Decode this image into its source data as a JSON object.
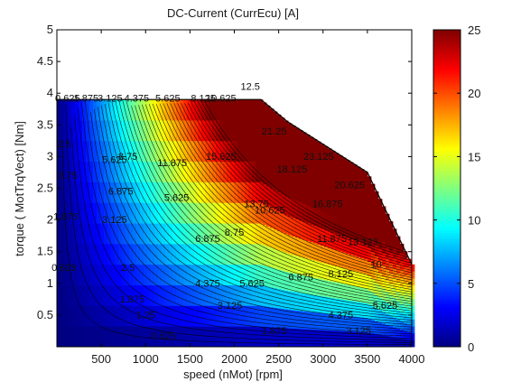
{
  "chart_data": {
    "type": "contour",
    "title": "DC-Current (CurrEcu) [A]",
    "xlabel": "speed (nMot) [rpm]",
    "ylabel": "torque ( MotTrqVect) [Nm]",
    "xlim": [
      0,
      4000
    ],
    "ylim": [
      0,
      5
    ],
    "x_ticks": [
      500,
      1000,
      1500,
      2000,
      2500,
      3000,
      3500,
      4000
    ],
    "y_ticks": [
      0.5,
      1,
      1.5,
      2,
      2.5,
      3,
      3.5,
      4,
      4.5,
      5
    ],
    "grid": false,
    "colormap": "jet",
    "colorbar": {
      "min": 0,
      "max": 25,
      "ticks": [
        0,
        5,
        10,
        15,
        20,
        25
      ]
    },
    "contour_step": 0.625,
    "operating_boundary": {
      "speed": [
        0,
        2300,
        2600,
        3500,
        4000
      ],
      "torque": [
        3.9,
        3.9,
        3.55,
        2.75,
        1.3
      ]
    },
    "contour_labels": [
      {
        "text": "0.625",
        "speed": 120,
        "torque": 3.87
      },
      {
        "text": "1.875",
        "speed": 330,
        "torque": 3.87
      },
      {
        "text": "3.125",
        "speed": 600,
        "torque": 3.87
      },
      {
        "text": "4.375",
        "speed": 900,
        "torque": 3.87
      },
      {
        "text": "5.625",
        "speed": 1250,
        "torque": 3.87
      },
      {
        "text": "8.125",
        "speed": 1650,
        "torque": 3.87
      },
      {
        "text": "10.625",
        "speed": 1850,
        "torque": 3.87
      },
      {
        "text": "12.5",
        "speed": 2180,
        "torque": 4.05
      },
      {
        "text": "2.5",
        "speed": 80,
        "torque": 3.15
      },
      {
        "text": "5.625",
        "speed": 650,
        "torque": 2.9
      },
      {
        "text": "6.875",
        "speed": 720,
        "torque": 2.4
      },
      {
        "text": "8.75",
        "speed": 800,
        "torque": 2.95
      },
      {
        "text": "11.875",
        "speed": 1300,
        "torque": 2.85
      },
      {
        "text": "15.625",
        "speed": 1850,
        "torque": 2.95
      },
      {
        "text": "18.125",
        "speed": 2650,
        "torque": 2.75
      },
      {
        "text": "21.25",
        "speed": 2450,
        "torque": 3.35
      },
      {
        "text": "23.125",
        "speed": 2950,
        "torque": 2.95
      },
      {
        "text": "3.75",
        "speed": 120,
        "torque": 2.65
      },
      {
        "text": "1.875",
        "speed": 100,
        "torque": 2.0
      },
      {
        "text": "5.625",
        "speed": 1350,
        "torque": 2.3
      },
      {
        "text": "10.625",
        "speed": 2400,
        "torque": 2.1
      },
      {
        "text": "13.75",
        "speed": 2250,
        "torque": 2.2
      },
      {
        "text": "16.875",
        "speed": 3050,
        "torque": 2.2
      },
      {
        "text": "20.625",
        "speed": 3300,
        "torque": 2.5
      },
      {
        "text": "3.125",
        "speed": 650,
        "torque": 1.95
      },
      {
        "text": "6.875",
        "speed": 1700,
        "torque": 1.65
      },
      {
        "text": "8.75",
        "speed": 2000,
        "torque": 1.75
      },
      {
        "text": "11.875",
        "speed": 3100,
        "torque": 1.65
      },
      {
        "text": "13.125",
        "speed": 3450,
        "torque": 1.6
      },
      {
        "text": "2.5",
        "speed": 800,
        "torque": 1.2
      },
      {
        "text": "4.375",
        "speed": 1700,
        "torque": 0.95
      },
      {
        "text": "5.625",
        "speed": 2200,
        "torque": 0.95
      },
      {
        "text": "6.875",
        "speed": 2750,
        "torque": 1.05
      },
      {
        "text": "8.125",
        "speed": 3200,
        "torque": 1.1
      },
      {
        "text": "10",
        "speed": 3600,
        "torque": 1.25
      },
      {
        "text": "0.625",
        "speed": 80,
        "torque": 1.2
      },
      {
        "text": "1.875",
        "speed": 850,
        "torque": 0.7
      },
      {
        "text": "1.25",
        "speed": 1000,
        "torque": 0.45
      },
      {
        "text": "3.125",
        "speed": 1950,
        "torque": 0.6
      },
      {
        "text": "4.375",
        "speed": 3200,
        "torque": 0.45
      },
      {
        "text": "5.625",
        "speed": 3700,
        "torque": 0.6
      },
      {
        "text": "0.625",
        "speed": 1200,
        "torque": 0.12
      },
      {
        "text": "1.875",
        "speed": 2450,
        "torque": 0.2
      },
      {
        "text": "3.125",
        "speed": 3400,
        "torque": 0.2
      }
    ]
  }
}
